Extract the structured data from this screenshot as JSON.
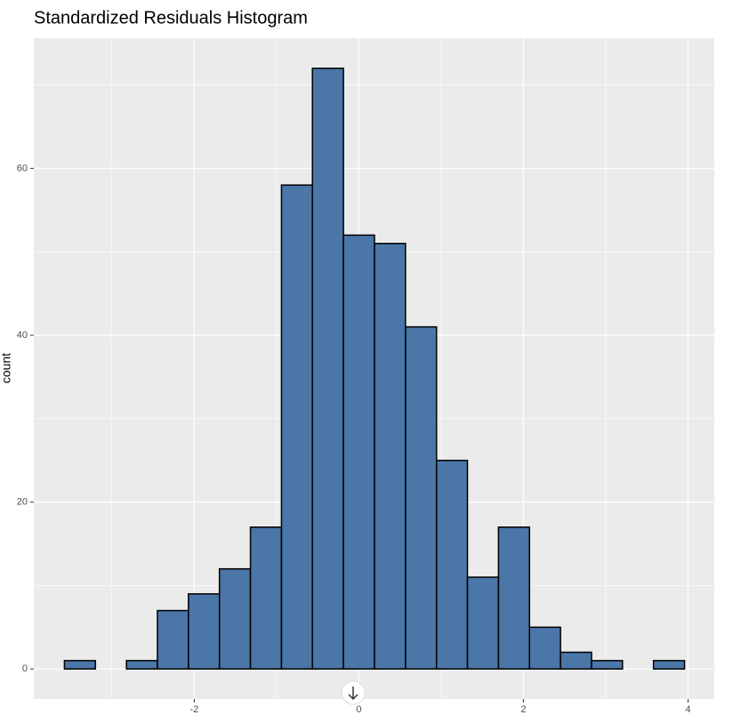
{
  "chart_data": {
    "type": "histogram",
    "title": "Standardized Residuals Histogram",
    "y_label": "count",
    "bins": [
      -3.578,
      -3.201,
      -2.824,
      -2.448,
      -2.071,
      -1.694,
      -1.317,
      -0.94,
      -0.564,
      -0.187,
      0.19,
      0.567,
      0.944,
      1.32,
      1.697,
      2.074,
      2.451,
      2.828,
      3.204,
      3.581,
      3.958
    ],
    "values": [
      1,
      0,
      1,
      7,
      9,
      12,
      17,
      58,
      72,
      52,
      51,
      41,
      25,
      11,
      17,
      5,
      2,
      1,
      0,
      1
    ],
    "color": "#4a76a8",
    "edge_color": "#000000",
    "xlim": [
      -3.95,
      4.32
    ],
    "ylim": [
      -3.6,
      75.6
    ],
    "xticks": [
      -2,
      0,
      2,
      4
    ],
    "yticks": [
      0,
      20,
      40,
      60
    ],
    "x_minor_grid": [
      -3,
      -1,
      1,
      3
    ],
    "y_minor_grid": [
      10,
      30,
      50,
      70
    ],
    "grid": true
  }
}
